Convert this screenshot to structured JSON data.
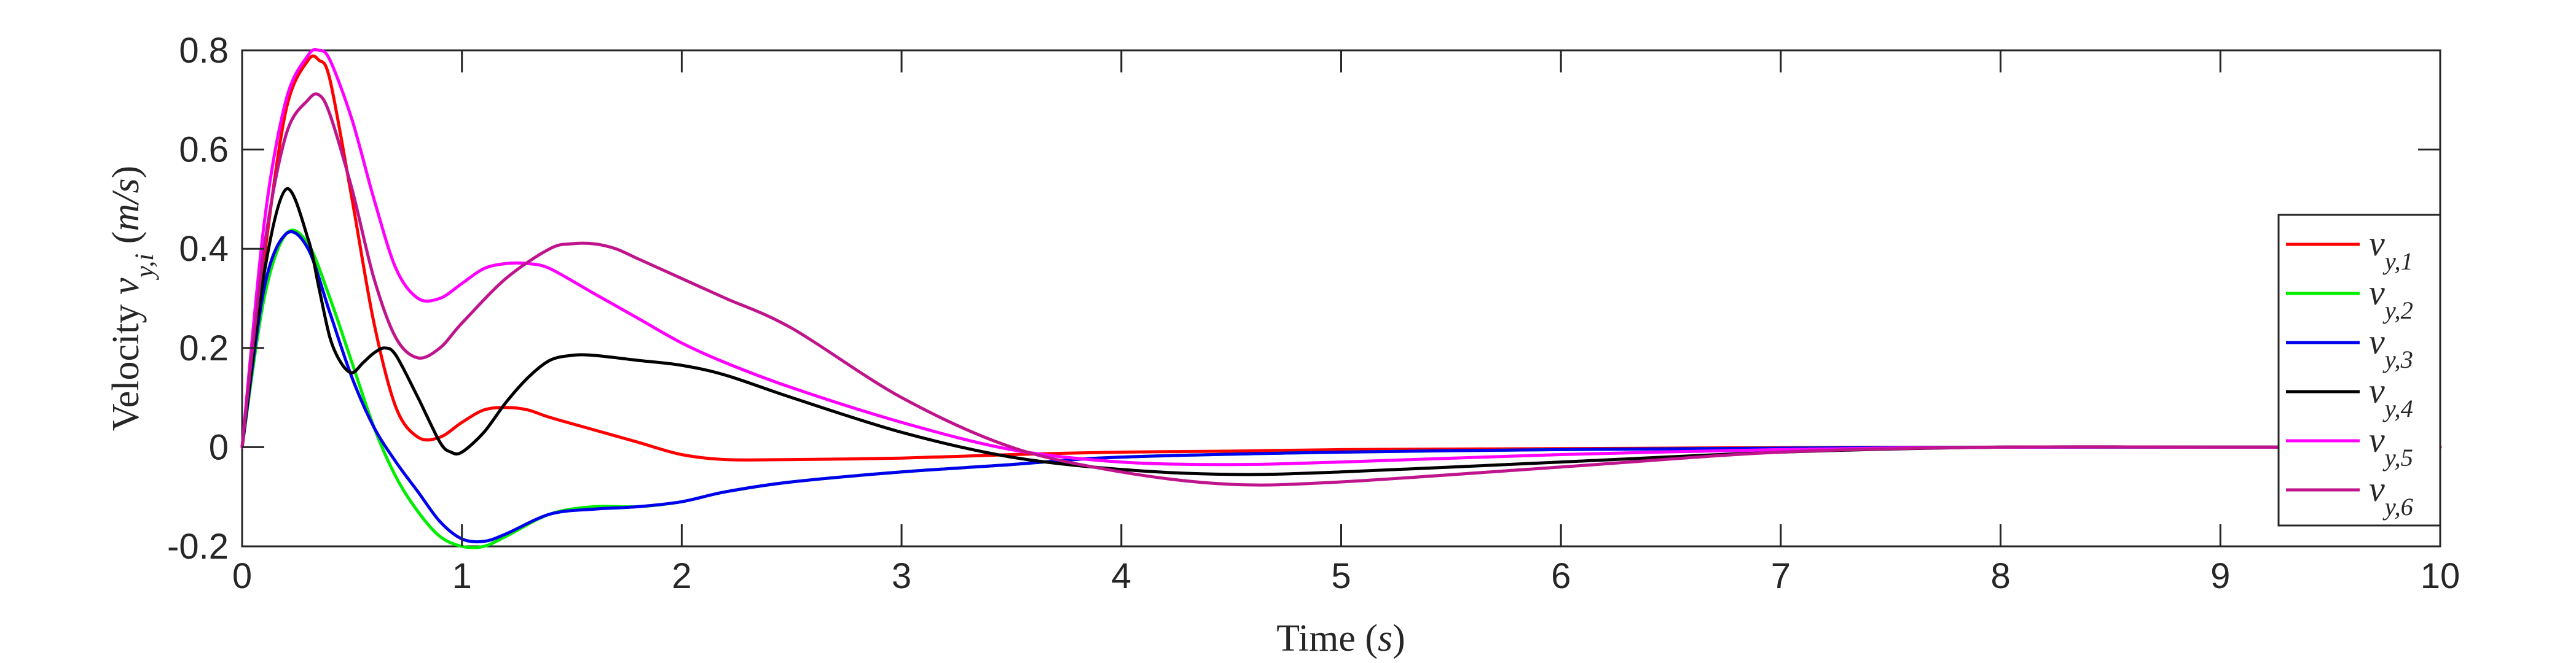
{
  "chart_data": {
    "type": "line",
    "xlabel": "Time (s)",
    "ylabel": "Velocity v_{y,i} (m/s)",
    "xlim": [
      0,
      10
    ],
    "ylim": [
      -0.2,
      0.8
    ],
    "x_ticks": [
      "0",
      "1",
      "2",
      "3",
      "4",
      "5",
      "6",
      "7",
      "8",
      "9",
      "10"
    ],
    "y_ticks": [
      "-0.2",
      "0",
      "0.2",
      "0.4",
      "0.6",
      "0.8"
    ],
    "grid": false,
    "legend_position": "right",
    "series": [
      {
        "name": "v_{y,1}",
        "color": "#ff0000",
        "x": [
          0,
          0.1,
          0.2,
          0.3,
          0.35,
          0.4,
          0.5,
          0.6,
          0.7,
          0.8,
          0.9,
          1.0,
          1.1,
          1.2,
          1.3,
          1.4,
          1.6,
          1.8,
          2.0,
          2.2,
          2.5,
          3.0,
          3.5,
          4.0,
          4.5,
          5.0,
          6.0,
          7.0,
          8.0,
          9.0,
          10.0
        ],
        "y": [
          0,
          0.38,
          0.68,
          0.78,
          0.78,
          0.74,
          0.5,
          0.25,
          0.08,
          0.02,
          0.02,
          0.05,
          0.075,
          0.08,
          0.075,
          0.06,
          0.035,
          0.01,
          -0.015,
          -0.025,
          -0.025,
          -0.022,
          -0.015,
          -0.01,
          -0.008,
          -0.005,
          -0.003,
          -0.001,
          0,
          0,
          0
        ]
      },
      {
        "name": "v_{y,2}",
        "color": "#00ee00",
        "x": [
          0,
          0.1,
          0.2,
          0.3,
          0.4,
          0.5,
          0.6,
          0.7,
          0.8,
          0.9,
          1.0,
          1.1,
          1.2,
          1.4,
          1.6,
          1.8,
          2.0,
          2.2,
          2.5,
          3.0,
          3.5,
          4.0,
          5.0,
          6.0,
          7.0,
          8.0,
          9.0,
          10.0
        ],
        "y": [
          0,
          0.3,
          0.43,
          0.41,
          0.3,
          0.17,
          0.04,
          -0.06,
          -0.13,
          -0.18,
          -0.2,
          -0.2,
          -0.18,
          -0.135,
          -0.12,
          -0.12,
          -0.11,
          -0.09,
          -0.07,
          -0.05,
          -0.035,
          -0.02,
          -0.01,
          -0.005,
          -0.002,
          0,
          0,
          0
        ]
      },
      {
        "name": "v_{y,3}",
        "color": "#0000ee",
        "x": [
          0,
          0.1,
          0.2,
          0.3,
          0.4,
          0.5,
          0.6,
          0.7,
          0.8,
          0.9,
          1.0,
          1.1,
          1.2,
          1.4,
          1.6,
          1.8,
          2.0,
          2.2,
          2.5,
          3.0,
          3.5,
          4.0,
          5.0,
          6.0,
          7.0,
          8.0,
          9.0,
          10.0
        ],
        "y": [
          0,
          0.32,
          0.43,
          0.4,
          0.27,
          0.14,
          0.04,
          -0.03,
          -0.09,
          -0.15,
          -0.185,
          -0.19,
          -0.175,
          -0.135,
          -0.125,
          -0.12,
          -0.11,
          -0.09,
          -0.07,
          -0.05,
          -0.035,
          -0.02,
          -0.01,
          -0.005,
          -0.002,
          0,
          0,
          0
        ]
      },
      {
        "name": "v_{y,4}",
        "color": "#000000",
        "x": [
          0,
          0.1,
          0.2,
          0.3,
          0.35,
          0.4,
          0.45,
          0.5,
          0.55,
          0.6,
          0.65,
          0.7,
          0.8,
          0.9,
          0.95,
          1.0,
          1.1,
          1.2,
          1.3,
          1.4,
          1.5,
          1.6,
          1.8,
          2.0,
          2.2,
          2.5,
          3.0,
          3.5,
          4.0,
          4.5,
          5.0,
          6.0,
          7.0,
          8.0,
          9.0,
          10.0
        ],
        "y": [
          0,
          0.35,
          0.52,
          0.42,
          0.32,
          0.22,
          0.17,
          0.15,
          0.17,
          0.19,
          0.2,
          0.185,
          0.1,
          0.01,
          -0.01,
          -0.01,
          0.03,
          0.09,
          0.14,
          0.175,
          0.185,
          0.185,
          0.175,
          0.165,
          0.145,
          0.1,
          0.03,
          -0.02,
          -0.045,
          -0.055,
          -0.05,
          -0.03,
          -0.01,
          0,
          0,
          0
        ]
      },
      {
        "name": "v_{y,5}",
        "color": "#ff00ff",
        "x": [
          0,
          0.1,
          0.2,
          0.3,
          0.35,
          0.4,
          0.5,
          0.6,
          0.7,
          0.8,
          0.9,
          1.0,
          1.1,
          1.2,
          1.3,
          1.4,
          1.6,
          1.8,
          2.0,
          2.2,
          2.5,
          3.0,
          3.5,
          4.0,
          4.5,
          5.0,
          6.0,
          7.0,
          8.0,
          9.0,
          10.0
        ],
        "y": [
          0,
          0.45,
          0.7,
          0.79,
          0.8,
          0.78,
          0.66,
          0.5,
          0.36,
          0.3,
          0.3,
          0.33,
          0.36,
          0.37,
          0.37,
          0.36,
          0.31,
          0.26,
          0.21,
          0.17,
          0.12,
          0.05,
          -0.005,
          -0.03,
          -0.035,
          -0.03,
          -0.015,
          -0.005,
          0,
          0,
          0
        ]
      },
      {
        "name": "v_{y,6}",
        "color": "#c0148c",
        "x": [
          0,
          0.1,
          0.2,
          0.3,
          0.35,
          0.4,
          0.5,
          0.6,
          0.7,
          0.8,
          0.9,
          1.0,
          1.2,
          1.4,
          1.5,
          1.6,
          1.7,
          1.8,
          2.0,
          2.2,
          2.5,
          3.0,
          3.5,
          4.0,
          4.5,
          5.0,
          6.0,
          7.0,
          8.0,
          9.0,
          10.0
        ],
        "y": [
          0,
          0.4,
          0.63,
          0.7,
          0.71,
          0.67,
          0.52,
          0.34,
          0.22,
          0.18,
          0.2,
          0.25,
          0.34,
          0.4,
          0.41,
          0.41,
          0.4,
          0.38,
          0.34,
          0.3,
          0.24,
          0.1,
          0.0,
          -0.05,
          -0.075,
          -0.07,
          -0.04,
          -0.01,
          0,
          0,
          0
        ]
      }
    ]
  }
}
